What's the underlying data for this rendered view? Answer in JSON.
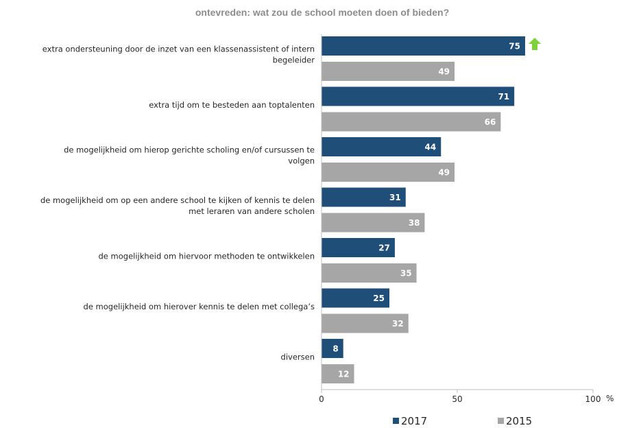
{
  "chart_data": {
    "type": "bar",
    "orientation": "horizontal",
    "title": "ontevreden: wat zou de school moeten doen of bieden?",
    "categories": [
      [
        "extra ondersteuning door de inzet van een klassenassistent of intern",
        "begeleider"
      ],
      [
        "extra tijd om te besteden aan toptalenten"
      ],
      [
        "de mogelijkheid  om hierop gerichte scholing en/of cursussen te",
        "volgen"
      ],
      [
        "de mogelijkheid om op een andere school te kijken of kennis te delen",
        "met leraren van andere scholen"
      ],
      [
        "de mogelijkheid om hiervoor methoden te ontwikkelen"
      ],
      [
        "de mogelijkheid  om hierover kennis  te delen met collega’s"
      ],
      [
        "diversen"
      ]
    ],
    "series": [
      {
        "name": "2017",
        "color": "#1f4e79",
        "values": [
          75,
          71,
          44,
          31,
          27,
          25,
          8
        ]
      },
      {
        "name": "2015",
        "color": "#a6a6a6",
        "values": [
          49,
          66,
          49,
          38,
          35,
          32,
          12
        ]
      }
    ],
    "significant_increase": [
      {
        "category_index": 0,
        "series": "2017",
        "icon": "up-arrow-icon",
        "color": "#7ed13b"
      }
    ],
    "xlim": [
      0,
      100
    ],
    "xticks": [
      "0",
      "50",
      "100"
    ],
    "xunit": "%",
    "grid": false,
    "legend": {
      "position": "bottom",
      "entries": [
        "2017",
        "2015"
      ]
    }
  }
}
